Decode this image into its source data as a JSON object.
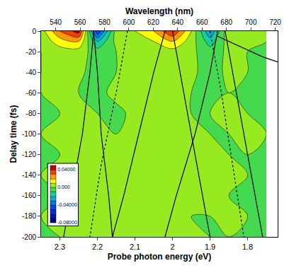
{
  "chart_data": {
    "type": "contour",
    "x_label": "Probe photon energy (eV)",
    "y_label": "Delay time (fs)",
    "x2_label": "Wavelength (nm)",
    "x": [
      2.35,
      2.3,
      2.25,
      2.2,
      2.15,
      2.1,
      2.05,
      2.0,
      1.95,
      1.9,
      1.85,
      1.8,
      1.75
    ],
    "y": [
      0,
      -10,
      -20,
      -40,
      -60,
      -80,
      -100,
      -120,
      -140,
      -160,
      -180,
      -200
    ],
    "z": [
      [
        0.005,
        0.03,
        0.045,
        -0.05,
        0.005,
        0.01,
        0.02,
        0.04,
        0.01,
        -0.03,
        0.01,
        0.005,
        0
      ],
      [
        0.003,
        0.015,
        0.02,
        -0.02,
        0.003,
        0.005,
        0.01,
        0.02,
        0.005,
        -0.015,
        0.005,
        0.003,
        0
      ],
      [
        0,
        0.005,
        0.005,
        -0.005,
        0,
        0.002,
        0.004,
        0.006,
        0.002,
        -0.005,
        0.002,
        0,
        0
      ],
      [
        0,
        0.002,
        0.001,
        -0.002,
        0,
        0.001,
        0.002,
        0.002,
        0.001,
        -0.002,
        0.001,
        0,
        0
      ],
      [
        0,
        0.001,
        0,
        -0.001,
        0.001,
        0,
        0.001,
        0.001,
        0,
        -0.001,
        0,
        0,
        0
      ],
      [
        0,
        0,
        0.001,
        0,
        -0.001,
        0.001,
        0,
        0.001,
        0,
        0,
        0.001,
        0,
        0
      ],
      [
        0,
        0.001,
        0,
        0.001,
        0,
        0.002,
        0.001,
        0,
        0.001,
        0,
        0,
        0.001,
        0
      ],
      [
        0,
        0,
        0.001,
        0,
        0.001,
        0.003,
        0.002,
        0.001,
        0,
        0.001,
        0,
        0,
        0
      ],
      [
        0,
        0.001,
        0,
        0.001,
        0.002,
        0.004,
        0.003,
        0.002,
        0.001,
        0,
        0.001,
        0,
        0
      ],
      [
        0,
        0,
        0.001,
        0,
        0.002,
        0.004,
        0.004,
        0.002,
        0.001,
        0.001,
        0,
        0,
        0
      ],
      [
        0,
        0.001,
        0,
        0.001,
        0.001,
        0.003,
        0.003,
        0.002,
        0,
        0,
        0.001,
        0,
        0
      ],
      [
        0,
        0,
        0.001,
        0,
        0.001,
        0.002,
        0.002,
        0.001,
        0.001,
        0,
        0,
        0,
        0
      ]
    ],
    "xlim": [
      2.35,
      1.72
    ],
    "xticks": [
      2.3,
      2.2,
      2.1,
      2,
      1.9,
      1.8
    ],
    "x2lim": [
      528,
      722
    ],
    "x2ticks": [
      540,
      560,
      580,
      600,
      620,
      640,
      660,
      680,
      700,
      720
    ],
    "ylim": [
      -200,
      0
    ],
    "yticks": [
      0,
      -20,
      -40,
      -60,
      -80,
      -100,
      -120,
      -140,
      -160,
      -180,
      -200
    ],
    "colorbar": {
      "zlim": [
        -0.08,
        0.05
      ],
      "ticks": [
        {
          "value": 0.04,
          "label": "0.04000"
        },
        {
          "value": 0,
          "label": "0.000"
        },
        {
          "value": -0.04,
          "label": "-0.04000"
        },
        {
          "value": -0.08,
          "label": "-0.08000"
        }
      ]
    },
    "grid": false,
    "series": [
      {
        "color": "#000000",
        "line_style": "solid",
        "x": [
          2.21,
          2.22,
          2.24,
          2.27,
          2.29
        ],
        "y": [
          0,
          -40,
          -100,
          -160,
          -200
        ]
      },
      {
        "color": "#000000",
        "line_style": "solid",
        "x": [
          2.21,
          2.2,
          2.19,
          2.17,
          2.16
        ],
        "y": [
          0,
          -40,
          -100,
          -160,
          -200
        ]
      },
      {
        "color": "#000000",
        "line_style": "solid",
        "x": [
          2.02,
          2.05,
          2.09,
          2.13,
          2.16
        ],
        "y": [
          0,
          -40,
          -100,
          -160,
          -200
        ]
      },
      {
        "color": "#000000",
        "line_style": "solid",
        "x": [
          2.0,
          1.98,
          1.95,
          1.92,
          1.9
        ],
        "y": [
          0,
          -40,
          -100,
          -160,
          -200
        ]
      },
      {
        "color": "#000000",
        "line_style": "solid",
        "x": [
          1.88,
          1.9,
          1.94,
          1.99,
          2.02
        ],
        "y": [
          0,
          -40,
          -100,
          -160,
          -200
        ]
      },
      {
        "color": "#000000",
        "line_style": "solid",
        "x": [
          1.86,
          1.84,
          1.81,
          1.78,
          1.76
        ],
        "y": [
          0,
          -40,
          -100,
          -160,
          -200
        ]
      },
      {
        "color": "#000000",
        "line_style": "solid",
        "x": [
          1.88,
          1.82,
          1.76,
          1.72
        ],
        "y": [
          -5,
          -15,
          -25,
          -30
        ]
      },
      {
        "color": "#000000",
        "line_style": "dot",
        "x": [
          2.12,
          2.15,
          2.19,
          2.22
        ],
        "y": [
          0,
          -60,
          -130,
          -200
        ]
      },
      {
        "color": "#000000",
        "line_style": "dot",
        "x": [
          1.9,
          1.87,
          1.84,
          1.81
        ],
        "y": [
          0,
          -60,
          -130,
          -200
        ]
      }
    ]
  }
}
